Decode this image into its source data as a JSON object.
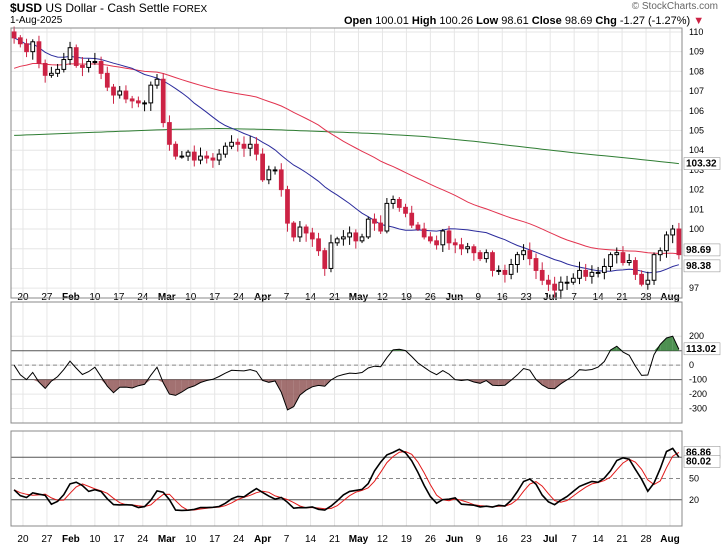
{
  "header": {
    "symbol": "$USD",
    "name": "US Dollar - Cash Settle",
    "exchange": "FOREX",
    "date": "1-Aug-2025",
    "copyright": "© StockCharts.com",
    "open_label": "Open",
    "open_value": "100.01",
    "high_label": "High",
    "high_value": "100.26",
    "low_label": "Low",
    "low_value": "98.61",
    "close_label": "Close",
    "close_value": "98.69",
    "chg_label": "Chg",
    "chg_value": "-1.27 (-1.27%)"
  },
  "colors": {
    "up": "#000000",
    "down": "#cc2244",
    "ma_short": "#2b2b9c",
    "ma_mid": "#e2334f",
    "ma_long": "#2e7d32",
    "cci_pos": "#2e7d32",
    "cci_neg": "#8b4d4d",
    "stoch_k": "#000000",
    "stoch_d": "#e21a1a"
  },
  "chart_data": [
    {
      "type": "candlestick",
      "name": "price",
      "ylim": [
        96.5,
        110.2
      ],
      "yticks": [
        97,
        98,
        99,
        100,
        101,
        102,
        103,
        104,
        105,
        106,
        107,
        108,
        109,
        110
      ],
      "x_labels": [
        "20",
        "27",
        "Feb",
        "10",
        "17",
        "24",
        "Mar",
        "10",
        "17",
        "24",
        "Apr",
        "7",
        "14",
        "21",
        "May",
        "12",
        "19",
        "26",
        "Jun",
        "9",
        "16",
        "23",
        "Jul",
        "7",
        "14",
        "21",
        "28",
        "Aug"
      ],
      "x_label_bold": [
        "Feb",
        "Mar",
        "Apr",
        "May",
        "Jun",
        "Jul",
        "Aug"
      ],
      "closes": [
        109.7,
        109.4,
        109.0,
        109.5,
        108.4,
        107.8,
        107.9,
        108.1,
        108.6,
        109.2,
        108.3,
        108.2,
        108.5,
        108.5,
        107.9,
        107.2,
        106.8,
        107.0,
        106.6,
        106.5,
        106.4,
        106.4,
        107.3,
        107.6,
        105.4,
        104.3,
        103.7,
        103.7,
        103.9,
        103.5,
        103.7,
        103.6,
        103.5,
        103.8,
        104.2,
        104.4,
        104.3,
        104.1,
        104.3,
        103.8,
        102.5,
        103.0,
        103.0,
        102.0,
        100.3,
        99.6,
        100.1,
        99.8,
        99.5,
        98.9,
        98.0,
        99.3,
        99.5,
        99.6,
        99.8,
        99.4,
        99.6,
        100.5,
        100.3,
        99.9,
        101.3,
        101.5,
        101.1,
        100.8,
        100.2,
        100.0,
        99.6,
        99.4,
        99.2,
        99.9,
        99.3,
        99.2,
        99.0,
        99.1,
        98.8,
        98.5,
        98.8,
        97.9,
        97.9,
        97.7,
        98.2,
        98.7,
        98.9,
        98.5,
        97.9,
        97.4,
        97.2,
        96.9,
        97.3,
        97.3,
        97.5,
        97.9,
        97.6,
        97.8,
        97.8,
        98.1,
        98.7,
        98.8,
        98.3,
        98.4,
        97.7,
        97.2,
        97.4,
        98.7,
        98.9,
        99.7,
        100.0,
        98.7
      ],
      "ma_short_period": 20,
      "ma_mid_period": 50,
      "ma_long": [
        104.75,
        104.85,
        104.95,
        105.05,
        105.1,
        105.05,
        104.95,
        104.85,
        104.7,
        104.45,
        104.15,
        103.85,
        103.6,
        103.32
      ],
      "last_price_label": "98.69",
      "ma_short_label": "98.38",
      "ma_long_label": "103.32"
    },
    {
      "type": "line",
      "name": "cci",
      "ylim": [
        -400,
        250
      ],
      "yticks": [
        200,
        100,
        0,
        -100,
        -200,
        -300
      ],
      "value_label": "113.02"
    },
    {
      "type": "line",
      "name": "stochastic",
      "ylim": [
        0,
        100
      ],
      "yticks": [
        20,
        50,
        80
      ],
      "x_labels": [
        "20",
        "27",
        "Feb",
        "10",
        "17",
        "24",
        "Mar",
        "10",
        "17",
        "24",
        "Apr",
        "7",
        "14",
        "21",
        "May",
        "12",
        "19",
        "26",
        "Jun",
        "9",
        "16",
        "23",
        "Jul",
        "7",
        "14",
        "21",
        "28",
        "Aug"
      ],
      "k_label": "86.86",
      "d_label": "80.02"
    }
  ]
}
